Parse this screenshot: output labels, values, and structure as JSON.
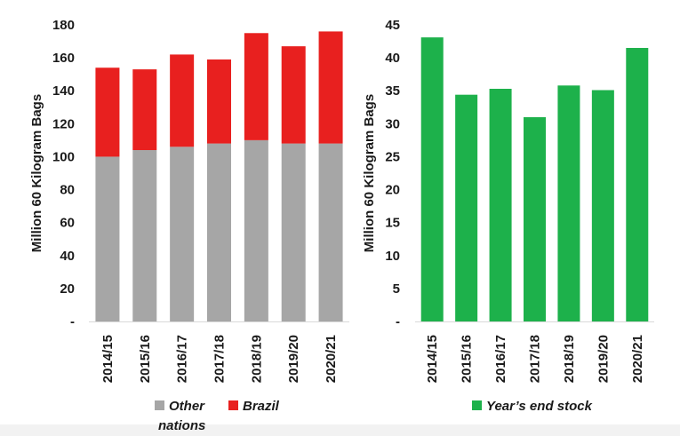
{
  "chart_data": [
    {
      "type": "bar",
      "stacked": true,
      "categories": [
        "2014/15",
        "2015/16",
        "2016/17",
        "2017/18",
        "2018/19",
        "2019/20",
        "2020/21"
      ],
      "series": [
        {
          "name": "Other nations",
          "color": "#a6a6a6",
          "values": [
            100,
            104,
            106,
            108,
            110,
            108,
            108
          ]
        },
        {
          "name": "Brazil",
          "color": "#e8201f",
          "values": [
            54,
            49,
            56,
            51,
            65,
            59,
            68
          ]
        }
      ],
      "ylabel": "Million 60 Kilogram Bags",
      "ylim": [
        0,
        180
      ],
      "yticks": [
        "-",
        "20",
        "40",
        "60",
        "80",
        "100",
        "120",
        "140",
        "160",
        "180"
      ],
      "legend": {
        "position": "bottom",
        "entries": [
          {
            "label_lines": [
              "Other",
              "nations"
            ],
            "color": "#a6a6a6"
          },
          {
            "label_lines": [
              "Brazil"
            ],
            "color": "#e8201f"
          }
        ]
      }
    },
    {
      "type": "bar",
      "categories": [
        "2014/15",
        "2015/16",
        "2016/17",
        "2017/18",
        "2018/19",
        "2019/20",
        "2020/21"
      ],
      "series": [
        {
          "name": "Year's end stock",
          "color": "#1db14b",
          "values": [
            43.1,
            34.4,
            35.3,
            31.0,
            35.8,
            35.1,
            41.5
          ]
        }
      ],
      "ylabel": "Million 60 Kilogram Bags",
      "ylim": [
        0,
        45
      ],
      "yticks": [
        "-",
        "5",
        "10",
        "15",
        "20",
        "25",
        "30",
        "35",
        "40",
        "45"
      ],
      "legend": {
        "position": "bottom",
        "entries": [
          {
            "label_lines": [
              "Year’s end stock"
            ],
            "color": "#1db14b"
          }
        ]
      }
    }
  ]
}
